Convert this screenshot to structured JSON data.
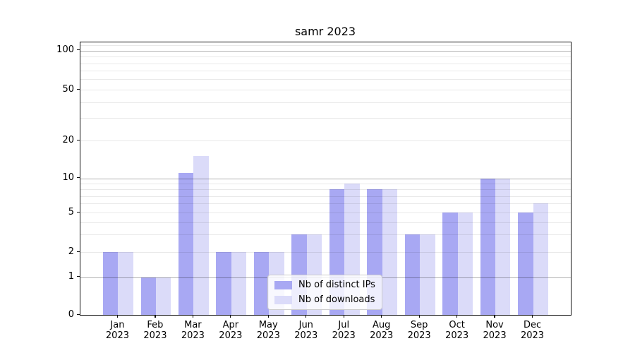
{
  "title": "samr 2023",
  "colors": {
    "distinct_ips_bar": "#a8a8f3",
    "downloads_bar": "#dbdbf9",
    "axis": "#111111",
    "major_grid": "rgba(0,0,0,0.30)",
    "minor_grid": "rgba(0,0,0,0.085)"
  },
  "legend": {
    "items": [
      {
        "label": "Nb of distinct IPs",
        "color": "#a8a8f3"
      },
      {
        "label": "Nb of downloads",
        "color": "#dbdbf9"
      }
    ]
  },
  "chart_data": {
    "type": "bar",
    "title": "samr 2023",
    "categories": [
      "Jan 2023",
      "Feb 2023",
      "Mar 2023",
      "Apr 2023",
      "May 2023",
      "Jun 2023",
      "Jul 2023",
      "Aug 2023",
      "Sep 2023",
      "Oct 2023",
      "Nov 2023",
      "Dec 2023"
    ],
    "series": [
      {
        "name": "Nb of distinct IPs",
        "color": "#a8a8f3",
        "values": [
          2,
          1,
          11,
          2,
          2,
          3,
          8,
          8,
          3,
          5,
          10,
          5
        ]
      },
      {
        "name": "Nb of downloads",
        "color": "#dbdbf9",
        "values": [
          2,
          1,
          15,
          2,
          2,
          3,
          9,
          8,
          3,
          5,
          10,
          6
        ]
      }
    ],
    "xlabel": "",
    "ylabel": "",
    "yscale": "symlog",
    "yticks": [
      0,
      1,
      2,
      5,
      10,
      20,
      50,
      100
    ],
    "ylim": [
      0,
      116
    ],
    "grid": "horizontal major+minor",
    "legend_position": "lower center"
  }
}
